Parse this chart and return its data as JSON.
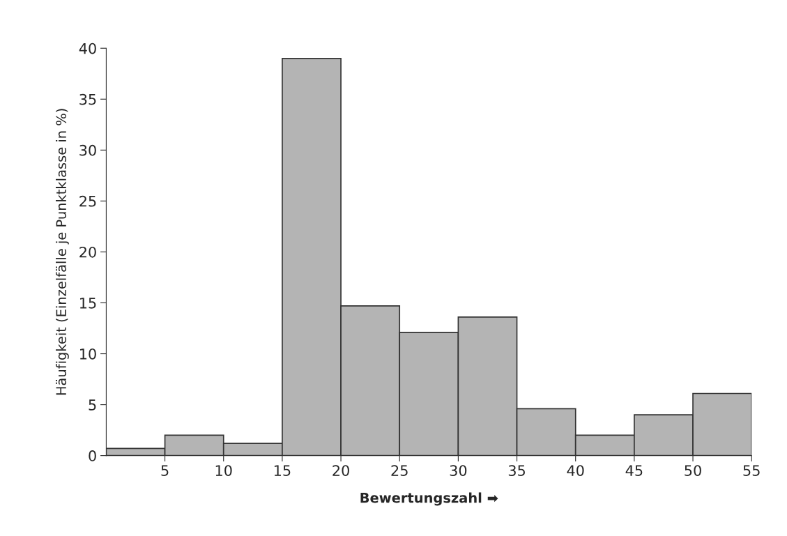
{
  "chart_data": {
    "type": "histogram",
    "xlabel": "Bewertungszahl ➡",
    "ylabel": "Häufigkeit (Einzelfälle je Punktklasse in %)",
    "bins": [
      0,
      5,
      10,
      15,
      20,
      25,
      30,
      35,
      40,
      45,
      50,
      55
    ],
    "values": [
      0.7,
      2.0,
      1.2,
      39,
      14.7,
      12.1,
      13.6,
      4.6,
      2.0,
      4.0,
      6.1
    ],
    "color": "#b4b4b4",
    "xlim": [
      0,
      55
    ],
    "xticks": [
      5,
      10,
      15,
      20,
      25,
      30,
      35,
      40,
      45,
      50,
      55
    ],
    "ylim": [
      0,
      40
    ],
    "yticks": [
      0,
      5,
      10,
      15,
      20,
      25,
      30,
      35,
      40
    ],
    "grid": false,
    "legend": false
  }
}
